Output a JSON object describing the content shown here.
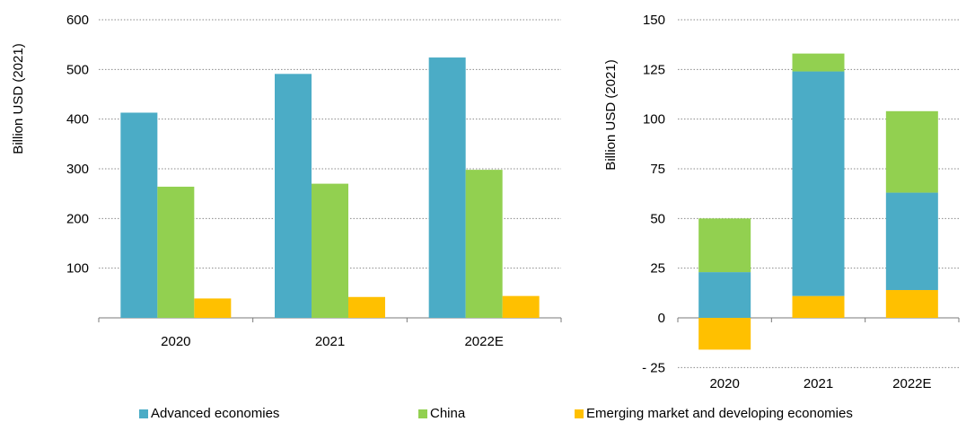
{
  "chart_data": [
    {
      "type": "bar",
      "categories": [
        "2020",
        "2021",
        "2022E"
      ],
      "ylabel": "Billion USD (2021)",
      "ylim": [
        0,
        600
      ],
      "yticks": [
        100,
        200,
        300,
        400,
        500,
        600
      ],
      "grid": true,
      "series": [
        {
          "name": "Advanced economies",
          "color": "#4bacc6",
          "values": [
            413,
            491,
            524
          ]
        },
        {
          "name": "China",
          "color": "#92d050",
          "values": [
            264,
            270,
            298
          ]
        },
        {
          "name": "Emerging market and developing economies",
          "color": "#ffc000",
          "values": [
            39,
            42,
            44
          ]
        }
      ]
    },
    {
      "type": "bar",
      "stacked": true,
      "categories": [
        "2020",
        "2021",
        "2022E"
      ],
      "ylabel": "Billion USD (2021)",
      "ylim": [
        -25,
        150
      ],
      "yticks": [
        -25,
        0,
        25,
        50,
        75,
        100,
        125,
        150
      ],
      "ytick_labels": [
        "- 25",
        "0",
        "25",
        "50",
        "75",
        "100",
        "125",
        "150"
      ],
      "grid": true,
      "series": [
        {
          "name": "Emerging market and developing economies",
          "color": "#ffc000",
          "values": [
            -16,
            11,
            14
          ]
        },
        {
          "name": "Advanced economies",
          "color": "#4bacc6",
          "values": [
            23,
            113,
            49
          ]
        },
        {
          "name": "China",
          "color": "#92d050",
          "values": [
            27,
            9,
            41
          ]
        }
      ]
    }
  ],
  "legend": {
    "placement": "bottom",
    "items": [
      {
        "label": "Advanced economies",
        "color": "#4bacc6"
      },
      {
        "label": "China",
        "color": "#92d050"
      },
      {
        "label": "Emerging market and developing economies",
        "color": "#ffc000"
      }
    ]
  }
}
